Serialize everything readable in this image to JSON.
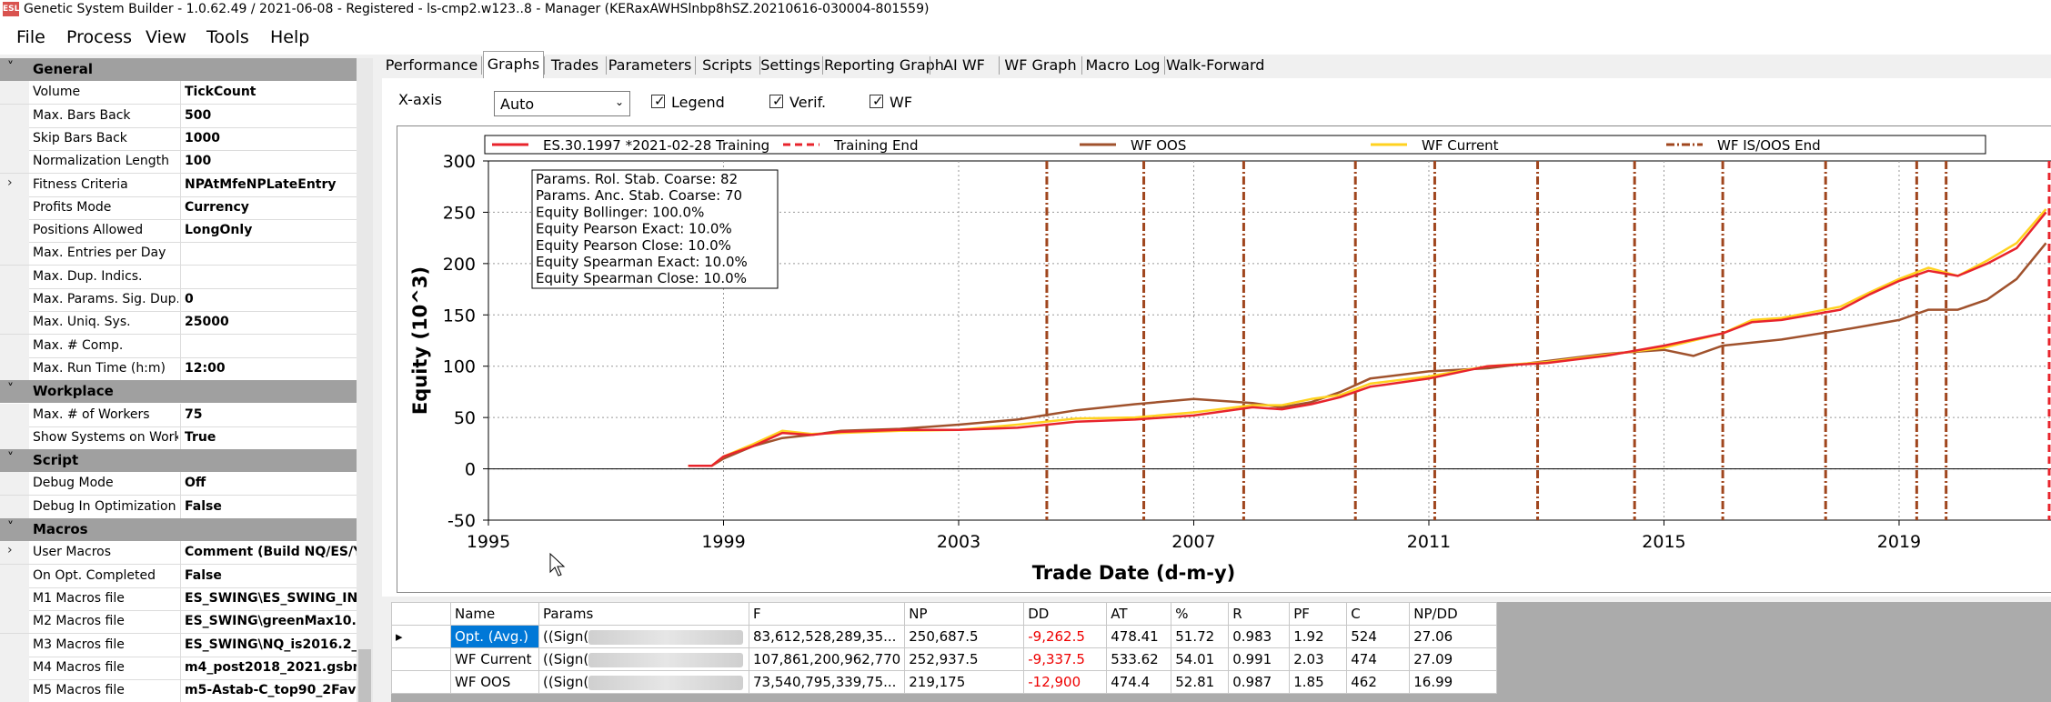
{
  "window": {
    "title": "Genetic System Builder - 1.0.62.49 / 2021-06-08 - Registered - ls-cmp2.w123..8 - Manager (KERaxAWHSlnbp8hSZ.20210616-030004-801559)",
    "icon_text": "ESL"
  },
  "menu": [
    "File",
    "Process",
    "View",
    "Tools",
    "Help"
  ],
  "properties": [
    {
      "type": "cat",
      "name": "General"
    },
    {
      "name": "Volume",
      "value": "TickCount"
    },
    {
      "name": "Max. Bars Back",
      "value": "500"
    },
    {
      "name": "Skip Bars Back",
      "value": "1000"
    },
    {
      "name": "Normalization Length",
      "value": "100"
    },
    {
      "name": "Fitness Criteria",
      "value": "NPAtMfeNPLateEntry",
      "expand": true
    },
    {
      "name": "Profits Mode",
      "value": "Currency"
    },
    {
      "name": "Positions Allowed",
      "value": "LongOnly"
    },
    {
      "name": "Max. Entries per Day",
      "value": ""
    },
    {
      "name": "Max. Dup. Indics.",
      "value": ""
    },
    {
      "name": "Max. Params. Sig. Dup.",
      "value": "0"
    },
    {
      "name": "Max. Uniq. Sys.",
      "value": "25000"
    },
    {
      "name": "Max. # Comp.",
      "value": ""
    },
    {
      "name": "Max. Run Time (h:m)",
      "value": "12:00"
    },
    {
      "type": "cat",
      "name": "Workplace"
    },
    {
      "name": "Max. # of Workers",
      "value": "75"
    },
    {
      "name": "Show Systems on Work",
      "value": "True"
    },
    {
      "type": "cat",
      "name": "Script"
    },
    {
      "name": "Debug Mode",
      "value": "Off"
    },
    {
      "name": "Debug In Optimization",
      "value": "False"
    },
    {
      "type": "cat",
      "name": "Macros"
    },
    {
      "name": "User Macros",
      "value": "Comment (Build NQ/ES/Y",
      "expand": true
    },
    {
      "name": "On Opt. Completed",
      "value": "False"
    },
    {
      "name": "M1 Macros file",
      "value": "ES_SWING\\ES_SWING_IN"
    },
    {
      "name": "M2 Macros file",
      "value": "ES_SWING\\greenMax10.g"
    },
    {
      "name": "M3 Macros file",
      "value": "ES_SWING\\NQ_is2016.2_"
    },
    {
      "name": "M4 Macros file",
      "value": "m4_post2018_2021.gsbm"
    },
    {
      "name": "M5 Macros file",
      "value": "m5-Astab-C_top90_2FavD"
    }
  ],
  "tabs": [
    "Performance",
    "Graphs",
    "Trades",
    "Parameters",
    "Scripts",
    "Settings",
    "Reporting Graph",
    "AI WF",
    "WF Graph",
    "Macro Log",
    "Walk-Forward"
  ],
  "active_tab": "Graphs",
  "toolbar": {
    "xaxis_label": "X-axis",
    "xaxis_value": "Auto",
    "legend": "Legend",
    "verif": "Verif.",
    "wf": "WF"
  },
  "chart_data": {
    "type": "line",
    "xlabel": "Trade Date (d-m-y)",
    "ylabel": "Equity (10^3)",
    "xlim": [
      1995,
      2021.6
    ],
    "ylim": [
      -50,
      300
    ],
    "xticks": [
      1995,
      1999,
      2003,
      2007,
      2011,
      2015,
      2019
    ],
    "yticks": [
      -50,
      0,
      50,
      100,
      150,
      200,
      250,
      300
    ],
    "legend": [
      "ES.30.1997 *2021-02-28 Training",
      "Training End",
      "WF OOS",
      "WF Current",
      "WF IS/OOS End"
    ],
    "legend_placement": "top",
    "colors": {
      "training": "#e8242c",
      "wf_oos": "#a0522d",
      "wf_current": "#ffd21f",
      "training_end": "#e8242c",
      "wf_isoos_end": "#a0461e"
    },
    "training_end": 2021.8,
    "wf_isoos_end": [
      2004.5,
      2006.15,
      2007.85,
      2009.75,
      2011.1,
      2012.85,
      2014.5,
      2016.0,
      2017.75,
      2019.3,
      2019.8
    ],
    "series": [
      {
        "name": "ES.30.1997 *2021-02-28 Training",
        "color": "#e8242c",
        "x": [
          1998.4,
          1998.8,
          1999.0,
          1999.5,
          2000.0,
          2000.5,
          2001.0,
          2002.0,
          2003.0,
          2004.0,
          2005.0,
          2006.0,
          2007.0,
          2008.0,
          2008.5,
          2009.0,
          2009.5,
          2010.0,
          2011.0,
          2012.0,
          2013.0,
          2014.0,
          2015.0,
          2016.0,
          2016.5,
          2017.0,
          2018.0,
          2018.5,
          2019.0,
          2019.5,
          2020.0,
          2020.5,
          2021.0,
          2021.5
        ],
        "y": [
          3,
          3,
          12,
          22,
          35,
          33,
          36,
          38,
          38,
          40,
          46,
          48,
          52,
          60,
          58,
          63,
          70,
          80,
          88,
          100,
          103,
          110,
          120,
          132,
          143,
          145,
          155,
          170,
          183,
          193,
          188,
          200,
          215,
          250
        ]
      },
      {
        "name": "WF Current",
        "color": "#ffd21f",
        "x": [
          1998.4,
          1998.8,
          1999.0,
          1999.5,
          2000.0,
          2000.5,
          2001.0,
          2002.0,
          2003.0,
          2004.0,
          2005.0,
          2006.0,
          2007.0,
          2008.0,
          2008.5,
          2009.0,
          2009.5,
          2010.0,
          2011.0,
          2012.0,
          2013.0,
          2014.0,
          2015.0,
          2016.0,
          2016.5,
          2017.0,
          2018.0,
          2018.5,
          2019.0,
          2019.5,
          2020.0,
          2020.5,
          2021.0,
          2021.5
        ],
        "y": [
          3,
          3,
          12,
          24,
          37,
          34,
          35,
          37,
          38,
          43,
          49,
          50,
          55,
          62,
          62,
          68,
          72,
          83,
          90,
          100,
          104,
          111,
          118,
          132,
          145,
          147,
          158,
          172,
          185,
          196,
          188,
          203,
          220,
          253
        ]
      },
      {
        "name": "WF OOS",
        "color": "#a0522d",
        "x": [
          1998.4,
          1998.8,
          1999.0,
          1999.5,
          2000.0,
          2000.5,
          2001.0,
          2002.0,
          2003.0,
          2004.0,
          2005.0,
          2006.0,
          2007.0,
          2008.0,
          2008.5,
          2009.0,
          2009.5,
          2010.0,
          2011.0,
          2012.0,
          2013.0,
          2014.0,
          2015.0,
          2015.5,
          2016.0,
          2017.0,
          2018.0,
          2018.5,
          2019.0,
          2019.5,
          2020.0,
          2020.5,
          2021.0,
          2021.5
        ],
        "y": [
          3,
          3,
          10,
          22,
          30,
          33,
          37,
          39,
          43,
          48,
          57,
          63,
          68,
          64,
          60,
          65,
          75,
          88,
          95,
          98,
          105,
          112,
          116,
          110,
          120,
          126,
          135,
          140,
          145,
          155,
          155,
          165,
          185,
          220
        ]
      }
    ],
    "annotations": [
      "Params. Rol. Stab. Coarse: 82",
      "Params. Anc. Stab. Coarse: 70",
      "Equity Bollinger: 100.0%",
      "Equity Pearson Exact: 10.0%",
      "Equity Pearson Close: 10.0%",
      "Equity Spearman Exact: 10.0%",
      "Equity Spearman Close: 10.0%"
    ]
  },
  "grid": {
    "headers": [
      "Name",
      "Params",
      "F",
      "NP",
      "DD",
      "AT",
      "%",
      "R",
      "PF",
      "C",
      "NP/DD"
    ],
    "rows": [
      {
        "name": "Opt. (Avg.)",
        "params": "((Sign(",
        "f": "83,612,528,289,35...",
        "np": "250,687.5",
        "dd": "-9,262.5",
        "at": "478.41",
        "pct": "51.72",
        "r": "0.983",
        "pf": "1.92",
        "c": "524",
        "npdd": "27.06",
        "selected": true
      },
      {
        "name": "WF Current",
        "params": "((Sign(",
        "f": "107,861,200,962,770",
        "np": "252,937.5",
        "dd": "-9,337.5",
        "at": "533.62",
        "pct": "54.01",
        "r": "0.991",
        "pf": "2.03",
        "c": "474",
        "npdd": "27.09"
      },
      {
        "name": "WF OOS",
        "params": "((Sign(",
        "f": "73,540,795,339,75...",
        "np": "219,175",
        "dd": "-12,900",
        "at": "474.4",
        "pct": "52.81",
        "r": "0.987",
        "pf": "1.85",
        "c": "462",
        "npdd": "16.99"
      }
    ]
  }
}
